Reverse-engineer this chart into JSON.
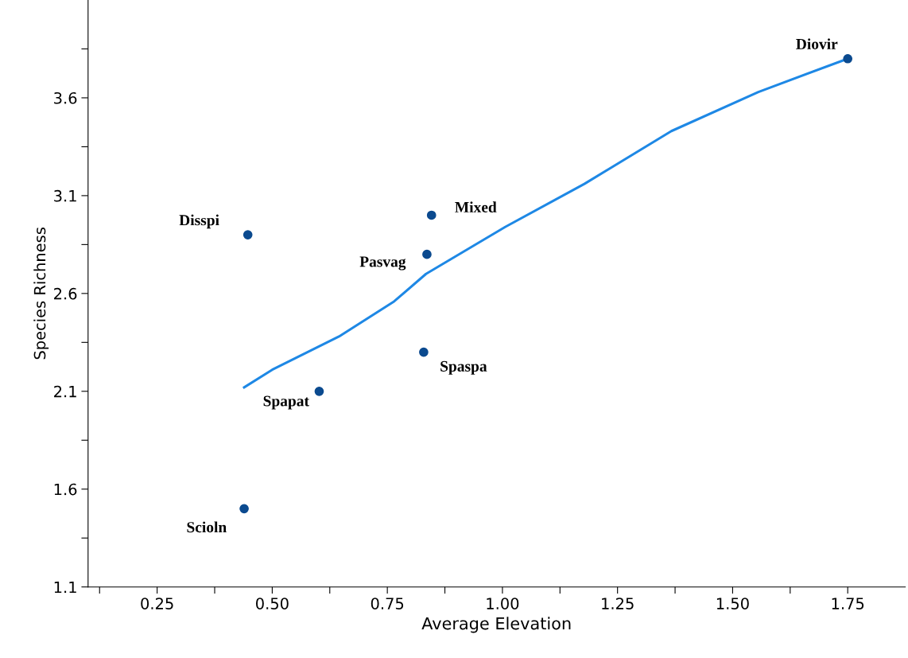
{
  "chart_data": {
    "type": "scatter",
    "xlabel": "Average Elevation",
    "ylabel": "Species Richness",
    "xlim": [
      0.1,
      1.875
    ],
    "ylim": [
      1.1,
      4.1
    ],
    "xticks": [
      {
        "value": 0.125,
        "label": null
      },
      0.25,
      {
        "value": 0.375,
        "label": null
      },
      "0.50",
      {
        "value": 0.625,
        "label": null
      },
      0.75,
      {
        "value": 0.875,
        "label": null
      },
      "1.00",
      {
        "value": 1.125,
        "label": null
      },
      1.25,
      {
        "value": 1.375,
        "label": null
      },
      "1.50",
      {
        "value": 1.625,
        "label": null
      },
      1.75
    ],
    "yticks": [
      1.1,
      {
        "value": 1.35,
        "label": null
      },
      1.6,
      {
        "value": 1.85,
        "label": null
      },
      2.1,
      {
        "value": 2.35,
        "label": null
      },
      2.6,
      {
        "value": 2.85,
        "label": null
      },
      3.1,
      {
        "value": 3.35,
        "label": null
      },
      3.6,
      {
        "value": 3.85,
        "label": null
      }
    ],
    "grid": false,
    "marker": "circle",
    "series": [
      {
        "color": "#0b4a8f",
        "x": [
          1.75,
          0.846,
          0.447,
          0.836,
          0.829,
          0.602,
          0.439
        ],
        "values": [
          3.8,
          3.0,
          2.9,
          2.8,
          2.3,
          2.1,
          1.5
        ]
      },
      {
        "type": "line",
        "color": "#1e88e5",
        "marker": "none",
        "line_style": "solid",
        "x": [
          0.439,
          0.5,
          0.645,
          0.765,
          0.834,
          1.006,
          1.178,
          1.367,
          1.556,
          1.75
        ],
        "values": [
          2.12,
          2.21,
          2.38,
          2.56,
          2.7,
          2.94,
          3.16,
          3.43,
          3.63,
          3.8
        ]
      }
    ],
    "annotations": [
      {
        "text": "Diovir",
        "x": 1.75,
        "y": 3.8
      },
      {
        "text": "Mixed",
        "x": 0.846,
        "y": 3.0
      },
      {
        "text": "Disspi",
        "x": 0.447,
        "y": 2.9
      },
      {
        "text": "Pasvag",
        "x": 0.836,
        "y": 2.8
      },
      {
        "text": "Spaspa",
        "x": 0.829,
        "y": 2.3
      },
      {
        "text": "Spapat",
        "x": 0.602,
        "y": 2.1
      },
      {
        "text": "Scioln",
        "x": 0.439,
        "y": 1.5
      }
    ]
  }
}
